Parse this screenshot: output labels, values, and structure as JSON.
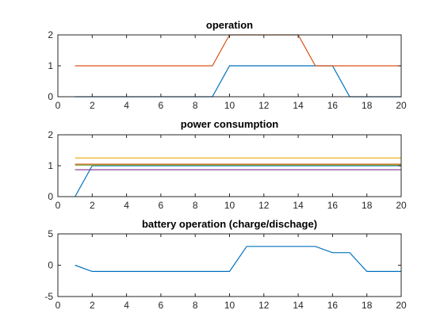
{
  "chart_data": [
    {
      "type": "line",
      "title": "operation",
      "xlim": [
        0,
        20
      ],
      "ylim": [
        0,
        2
      ],
      "xticks": [
        0,
        2,
        4,
        6,
        8,
        10,
        12,
        14,
        16,
        18,
        20
      ],
      "yticks": [
        0,
        1,
        2
      ],
      "grid": false,
      "x": [
        1,
        2,
        3,
        4,
        5,
        6,
        7,
        8,
        9,
        10,
        11,
        12,
        13,
        14,
        15,
        16,
        17,
        18,
        19,
        20
      ],
      "series": [
        {
          "color": "#0072BD",
          "values": [
            0,
            0,
            0,
            0,
            0,
            0,
            0,
            0,
            0,
            1,
            1,
            1,
            1,
            1,
            1,
            1,
            0,
            0,
            0,
            0
          ]
        },
        {
          "color": "#D95319",
          "values": [
            1,
            1,
            1,
            1,
            1,
            1,
            1,
            1,
            1,
            2,
            2,
            2,
            2,
            2,
            1,
            1,
            1,
            1,
            1,
            1
          ]
        }
      ]
    },
    {
      "type": "line",
      "title": "power consumption",
      "xlim": [
        0,
        20
      ],
      "ylim": [
        0,
        2
      ],
      "xticks": [
        0,
        2,
        4,
        6,
        8,
        10,
        12,
        14,
        16,
        18,
        20
      ],
      "yticks": [
        0,
        1,
        2
      ],
      "grid": false,
      "x": [
        1,
        2,
        3,
        4,
        5,
        6,
        7,
        8,
        9,
        10,
        11,
        12,
        13,
        14,
        15,
        16,
        17,
        18,
        19,
        20
      ],
      "series": [
        {
          "color": "#0072BD",
          "values": [
            0,
            1,
            1,
            1,
            1,
            1,
            1,
            1,
            1,
            1,
            1,
            1,
            1,
            1,
            1,
            1,
            1,
            1,
            1,
            1
          ]
        },
        {
          "color": "#D95319",
          "values": [
            1.05,
            1.05,
            1.05,
            1.05,
            1.05,
            1.05,
            1.05,
            1.05,
            1.05,
            1.05,
            1.05,
            1.05,
            1.05,
            1.05,
            1.05,
            1.05,
            1.05,
            1.05,
            1.05,
            1.05
          ]
        },
        {
          "color": "#EDB120",
          "values": [
            1.25,
            1.25,
            1.25,
            1.25,
            1.25,
            1.25,
            1.25,
            1.25,
            1.25,
            1.25,
            1.25,
            1.25,
            1.25,
            1.25,
            1.25,
            1.25,
            1.25,
            1.25,
            1.25,
            1.25
          ]
        },
        {
          "color": "#7E2F8E",
          "values": [
            0.87,
            0.87,
            0.87,
            0.87,
            0.87,
            0.87,
            0.87,
            0.87,
            0.87,
            0.87,
            0.87,
            0.87,
            0.87,
            0.87,
            0.87,
            0.87,
            0.87,
            0.87,
            0.87,
            0.87
          ]
        },
        {
          "color": "#77AC30",
          "values": [
            1.02,
            1.02,
            1.02,
            1.02,
            1.02,
            1.02,
            1.02,
            1.02,
            1.02,
            1.02,
            1.02,
            1.02,
            1.02,
            1.02,
            1.02,
            1.02,
            1.02,
            1.02,
            1.02,
            1.02
          ]
        }
      ]
    },
    {
      "type": "line",
      "title": "battery operation (charge/dischage)",
      "xlim": [
        0,
        20
      ],
      "ylim": [
        -5,
        5
      ],
      "xticks": [
        0,
        2,
        4,
        6,
        8,
        10,
        12,
        14,
        16,
        18,
        20
      ],
      "yticks": [
        -5,
        0,
        5
      ],
      "grid": false,
      "x": [
        1,
        2,
        3,
        4,
        5,
        6,
        7,
        8,
        9,
        10,
        11,
        12,
        13,
        14,
        15,
        16,
        17,
        18,
        19,
        20
      ],
      "series": [
        {
          "color": "#0072BD",
          "values": [
            0,
            -1,
            -1,
            -1,
            -1,
            -1,
            -1,
            -1,
            -1,
            -1,
            3,
            3,
            3,
            3,
            3,
            2,
            2,
            -1,
            -1,
            -1
          ]
        }
      ]
    }
  ]
}
